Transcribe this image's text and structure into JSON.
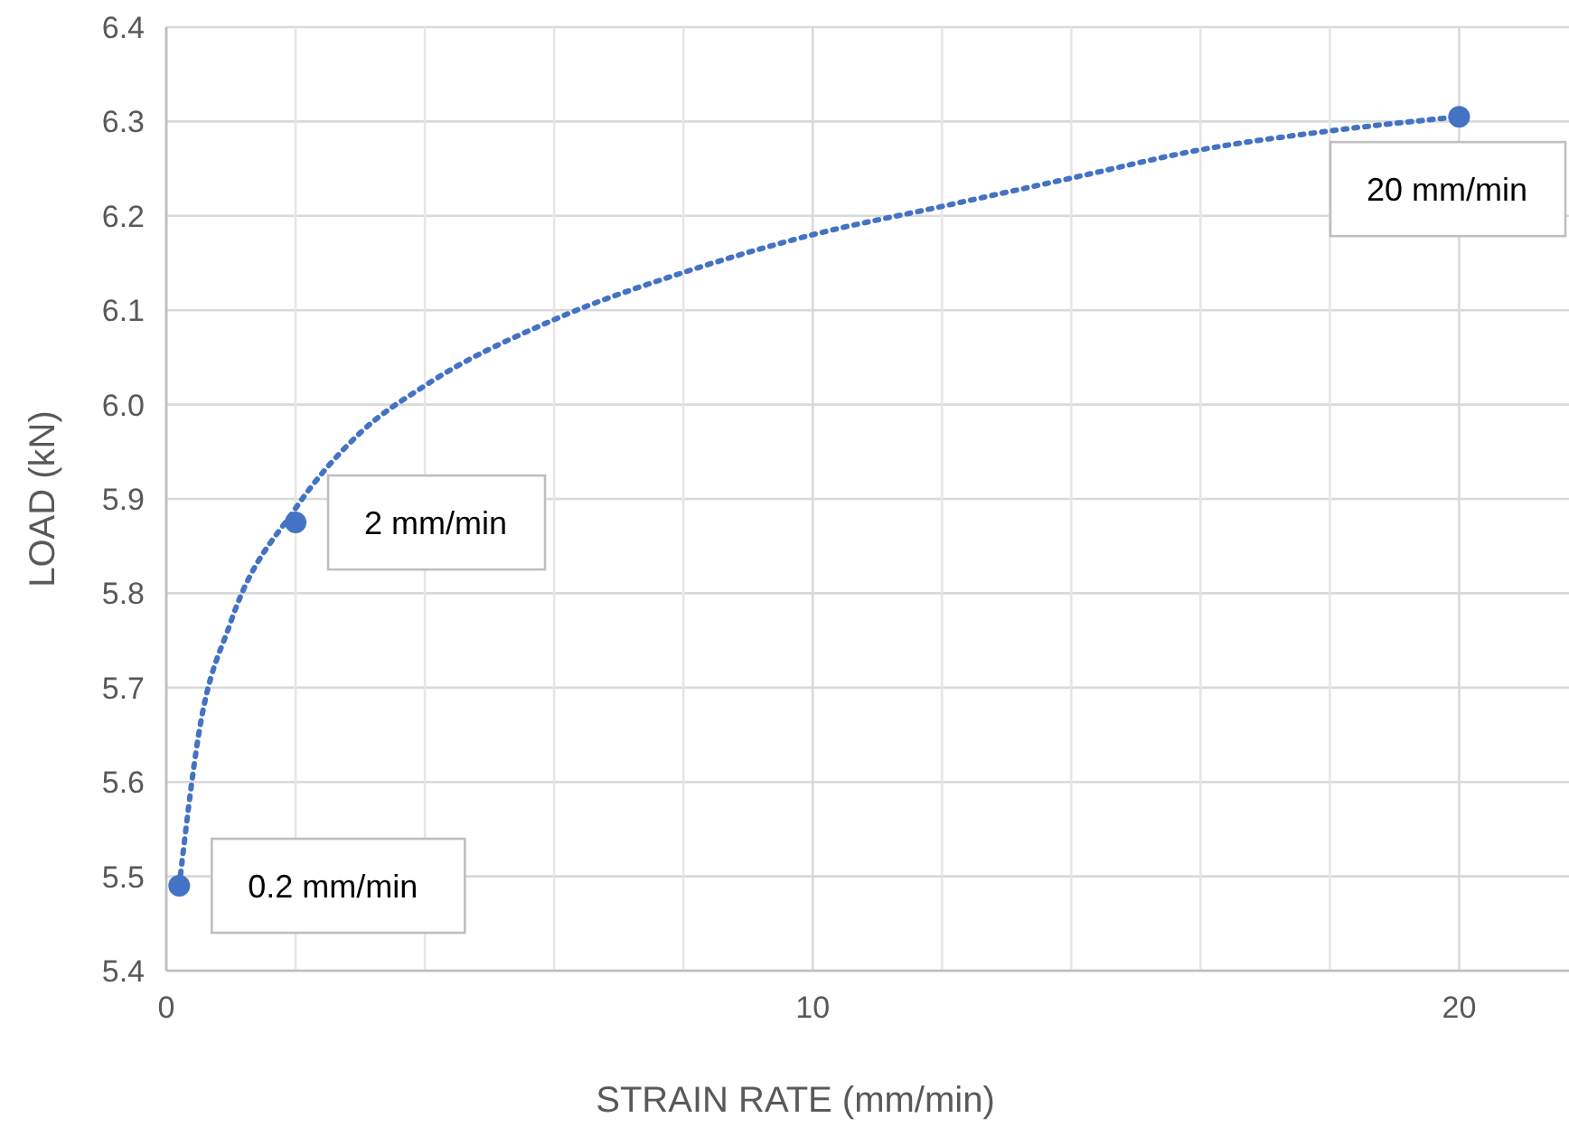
{
  "chart_data": {
    "type": "scatter",
    "xlabel": "STRAIN RATE (mm/min)",
    "ylabel": "LOAD (kN)",
    "xlim": [
      0,
      21.7
    ],
    "ylim": [
      5.4,
      6.4
    ],
    "xticks": [
      0,
      {
        "value": 2,
        "label": null
      },
      {
        "value": 4,
        "label": null
      },
      {
        "value": 6,
        "label": null
      },
      {
        "value": 8,
        "label": null
      },
      10,
      {
        "value": 12,
        "label": null
      },
      {
        "value": 14,
        "label": null
      },
      {
        "value": 16,
        "label": null
      },
      {
        "value": 18,
        "label": null
      },
      20
    ],
    "yticks": [
      {
        "value": 5.4,
        "label": "5.4"
      },
      {
        "value": 5.5,
        "label": "5.5"
      },
      {
        "value": 5.6,
        "label": "5.6"
      },
      {
        "value": 5.7,
        "label": "5.7"
      },
      {
        "value": 5.8,
        "label": "5.8"
      },
      {
        "value": 5.9,
        "label": "5.9"
      },
      {
        "value": 6.0,
        "label": "6.0"
      },
      {
        "value": 6.1,
        "label": "6.1"
      },
      {
        "value": 6.2,
        "label": "6.2"
      },
      {
        "value": 6.3,
        "label": "6.3"
      },
      {
        "value": 6.4,
        "label": "6.4"
      }
    ],
    "grid": true,
    "series": [
      {
        "color": "#4472c4",
        "marker": "circle",
        "x": [
          0.2,
          2,
          20
        ],
        "values": [
          5.49,
          5.875,
          6.305
        ]
      },
      {
        "type": "line",
        "color": "#4472c4",
        "marker": "none",
        "line_style": "dotted",
        "x": [
          0.2,
          0.5,
          1,
          2,
          3,
          4,
          6,
          8,
          10,
          12,
          14,
          16,
          18,
          20
        ],
        "values": [
          5.49,
          5.65,
          5.77,
          5.89,
          5.97,
          6.02,
          6.09,
          6.14,
          6.18,
          6.21,
          6.24,
          6.27,
          6.29,
          6.305
        ]
      }
    ],
    "annotations": [
      {
        "text": "0.2 mm/min",
        "x": 0.2,
        "y": 5.49
      },
      {
        "text": "2 mm/min",
        "x": 2,
        "y": 5.875
      },
      {
        "text": "20 mm/min",
        "x": 20,
        "y": 6.305
      }
    ]
  }
}
